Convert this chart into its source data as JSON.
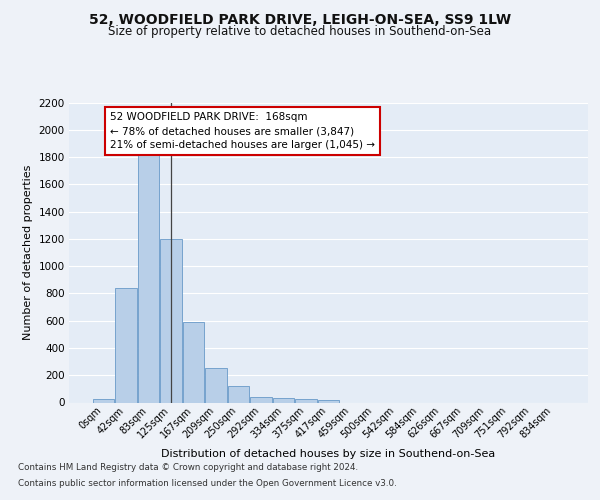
{
  "title_line1": "52, WOODFIELD PARK DRIVE, LEIGH-ON-SEA, SS9 1LW",
  "title_line2": "Size of property relative to detached houses in Southend-on-Sea",
  "xlabel": "Distribution of detached houses by size in Southend-on-Sea",
  "ylabel": "Number of detached properties",
  "categories": [
    "0sqm",
    "42sqm",
    "83sqm",
    "125sqm",
    "167sqm",
    "209sqm",
    "250sqm",
    "292sqm",
    "334sqm",
    "375sqm",
    "417sqm",
    "459sqm",
    "500sqm",
    "542sqm",
    "584sqm",
    "626sqm",
    "667sqm",
    "709sqm",
    "751sqm",
    "792sqm",
    "834sqm"
  ],
  "values": [
    25,
    840,
    1920,
    1200,
    590,
    255,
    120,
    40,
    35,
    25,
    20,
    0,
    0,
    0,
    0,
    0,
    0,
    0,
    0,
    0,
    0
  ],
  "bar_color": "#b8cfe8",
  "bar_edge_color": "#6899c8",
  "vline_index": 3,
  "annotation_text": "52 WOODFIELD PARK DRIVE:  168sqm\n← 78% of detached houses are smaller (3,847)\n21% of semi-detached houses are larger (1,045) →",
  "annotation_box_color": "white",
  "annotation_box_edge_color": "#cc0000",
  "ylim": [
    0,
    2200
  ],
  "yticks": [
    0,
    200,
    400,
    600,
    800,
    1000,
    1200,
    1400,
    1600,
    1800,
    2000,
    2200
  ],
  "footer_line1": "Contains HM Land Registry data © Crown copyright and database right 2024.",
  "footer_line2": "Contains public sector information licensed under the Open Government Licence v3.0.",
  "background_color": "#eef2f8",
  "plot_background_color": "#e4ecf6"
}
